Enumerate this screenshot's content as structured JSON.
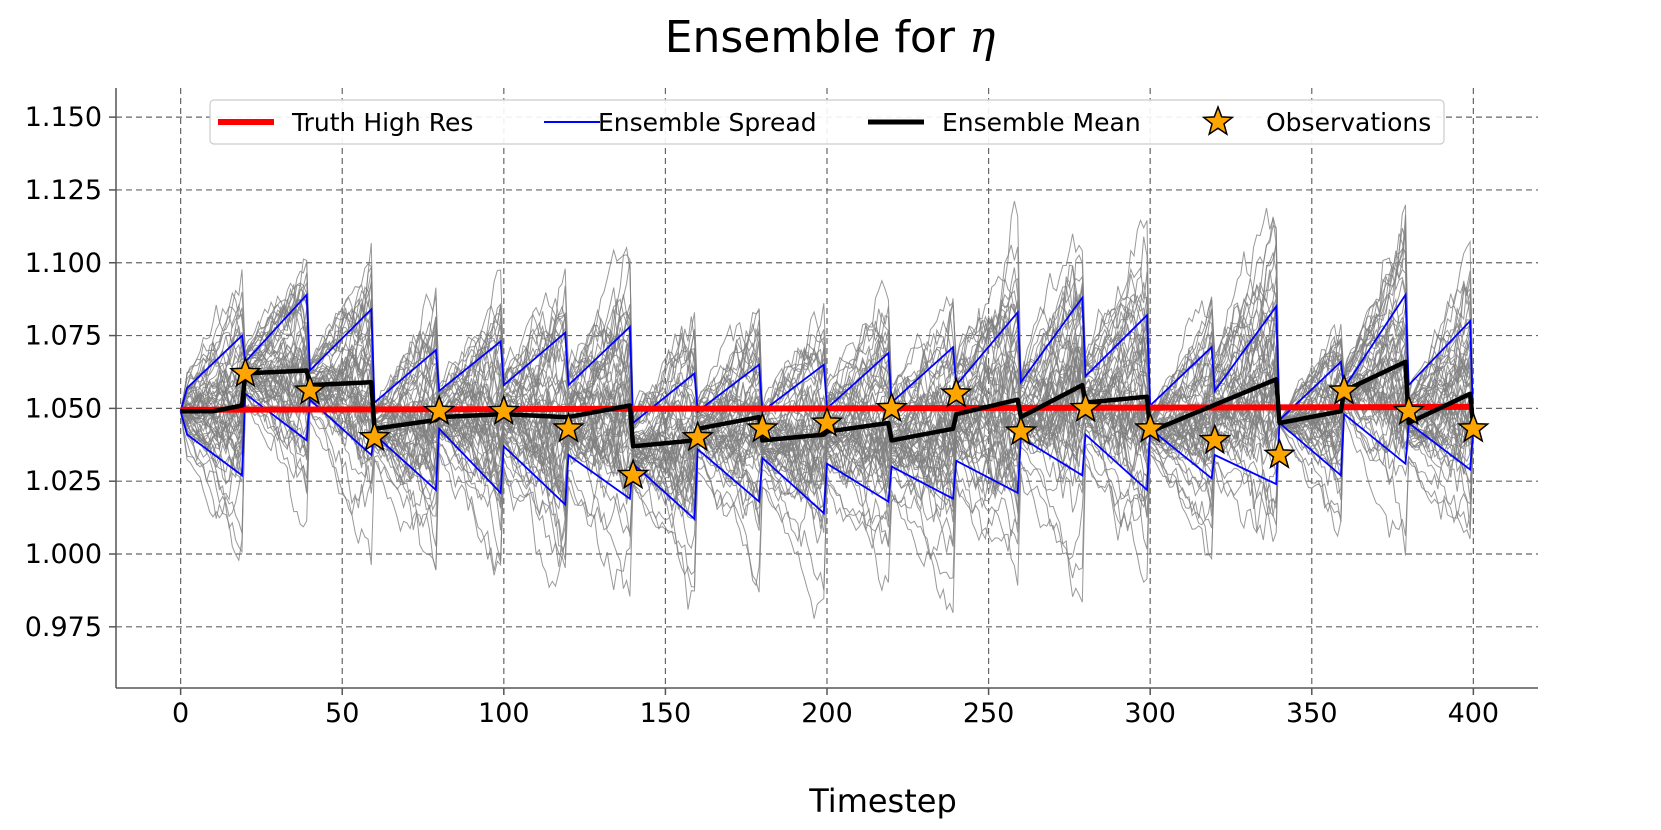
{
  "chart_data": {
    "type": "line",
    "title": "Ensemble for ",
    "title_symbol": "η",
    "xlabel": "Timestep",
    "ylabel": "",
    "xlim": [
      -20,
      420
    ],
    "ylim": [
      0.954,
      1.16
    ],
    "xticks": [
      0,
      50,
      100,
      150,
      200,
      250,
      300,
      350,
      400
    ],
    "xtick_labels": [
      "0",
      "50",
      "100",
      "150",
      "200",
      "250",
      "300",
      "350",
      "400"
    ],
    "yticks": [
      0.975,
      1.0,
      1.025,
      1.05,
      1.075,
      1.1,
      1.125,
      1.15
    ],
    "ytick_labels": [
      "0.975",
      "1.000",
      "1.025",
      "1.050",
      "1.075",
      "1.100",
      "1.125",
      "1.150"
    ],
    "grid": true,
    "legend_position": "top-center",
    "legend": [
      {
        "label": "Truth High Res",
        "color": "#ff0000"
      },
      {
        "label": "Ensemble Spread",
        "color": "#0000ff"
      },
      {
        "label": "Ensemble Mean",
        "color": "#000000"
      },
      {
        "label": "Observations",
        "color": "#ffa500"
      }
    ],
    "colors": {
      "truth": "#ff0000",
      "spread": "#0000ff",
      "mean": "#000000",
      "members": "#808080",
      "observation": "#ffa500"
    },
    "assimilation_interval": 20,
    "truth": {
      "name": "Truth High Res",
      "x": [
        0,
        400
      ],
      "y": [
        1.0495,
        1.0505
      ]
    },
    "observations": {
      "name": "Observations",
      "x": [
        20,
        40,
        60,
        80,
        100,
        120,
        140,
        160,
        180,
        200,
        220,
        240,
        260,
        280,
        300,
        320,
        340,
        360,
        380,
        400
      ],
      "y": [
        1.062,
        1.056,
        1.04,
        1.049,
        1.049,
        1.043,
        1.027,
        1.04,
        1.043,
        1.045,
        1.05,
        1.055,
        1.042,
        1.05,
        1.043,
        1.039,
        1.034,
        1.056,
        1.049,
        1.043
      ]
    },
    "ensemble_mean": {
      "name": "Ensemble Mean",
      "x": [
        0,
        10,
        19,
        20,
        39,
        40,
        59,
        60,
        79,
        80,
        99,
        100,
        119,
        120,
        139,
        140,
        159,
        160,
        179,
        180,
        199,
        200,
        219,
        220,
        239,
        240,
        259,
        260,
        279,
        280,
        299,
        300,
        339,
        340,
        359,
        360,
        379,
        380,
        399,
        400
      ],
      "y": [
        1.049,
        1.049,
        1.051,
        1.062,
        1.063,
        1.058,
        1.059,
        1.043,
        1.046,
        1.047,
        1.048,
        1.048,
        1.047,
        1.047,
        1.051,
        1.037,
        1.039,
        1.043,
        1.047,
        1.039,
        1.041,
        1.042,
        1.045,
        1.039,
        1.043,
        1.048,
        1.053,
        1.047,
        1.058,
        1.052,
        1.054,
        1.042,
        1.06,
        1.045,
        1.049,
        1.056,
        1.066,
        1.045,
        1.055,
        1.043
      ]
    },
    "ensemble_spread": {
      "name": "Ensemble Spread",
      "upper": {
        "x": [
          0,
          2,
          19,
          20,
          39,
          40,
          59,
          60,
          79,
          80,
          99,
          100,
          119,
          120,
          139,
          140,
          159,
          160,
          179,
          180,
          199,
          200,
          219,
          220,
          239,
          240,
          259,
          260,
          279,
          280,
          299,
          300,
          319,
          320,
          339,
          340,
          359,
          360,
          379,
          380,
          399,
          400
        ],
        "y": [
          1.049,
          1.057,
          1.075,
          1.066,
          1.089,
          1.063,
          1.084,
          1.052,
          1.07,
          1.056,
          1.073,
          1.058,
          1.076,
          1.058,
          1.078,
          1.045,
          1.062,
          1.049,
          1.065,
          1.049,
          1.065,
          1.05,
          1.069,
          1.052,
          1.071,
          1.058,
          1.083,
          1.059,
          1.088,
          1.061,
          1.082,
          1.051,
          1.071,
          1.056,
          1.085,
          1.046,
          1.066,
          1.057,
          1.089,
          1.058,
          1.08,
          1.043
        ]
      },
      "lower": {
        "x": [
          0,
          2,
          19,
          20,
          39,
          40,
          59,
          60,
          79,
          80,
          99,
          100,
          119,
          120,
          139,
          140,
          159,
          160,
          179,
          180,
          199,
          200,
          219,
          220,
          239,
          240,
          259,
          260,
          279,
          280,
          299,
          300,
          319,
          320,
          339,
          340,
          359,
          360,
          379,
          380,
          399,
          400
        ],
        "y": [
          1.049,
          1.041,
          1.027,
          1.055,
          1.039,
          1.053,
          1.034,
          1.041,
          1.022,
          1.043,
          1.021,
          1.037,
          1.017,
          1.034,
          1.019,
          1.031,
          1.012,
          1.036,
          1.018,
          1.033,
          1.014,
          1.031,
          1.018,
          1.03,
          1.019,
          1.032,
          1.021,
          1.04,
          1.027,
          1.041,
          1.022,
          1.043,
          1.026,
          1.034,
          1.024,
          1.045,
          1.027,
          1.048,
          1.031,
          1.045,
          1.029,
          1.043
        ]
      }
    },
    "ensemble_members": {
      "count": 60,
      "color": "#808080"
    }
  }
}
